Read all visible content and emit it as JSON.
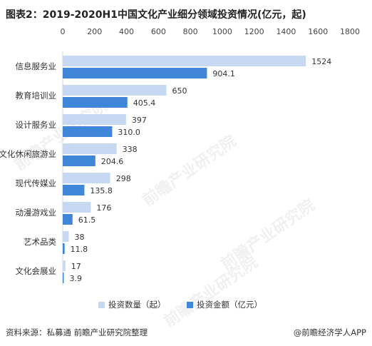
{
  "title": "图表2：2019-2020H1中国文化产业细分领域投资情况(亿元，起)",
  "source": "资料来源：私募通 前瞻产业研究院整理",
  "credit": "@前瞻经济学人APP",
  "watermark": "前瞻产业研究院",
  "colors": {
    "count": "#c6d8f2",
    "amount": "#3f86d8"
  },
  "chart_data": {
    "type": "bar",
    "orientation": "horizontal",
    "categories": [
      "信息服务业",
      "教育培训业",
      "设计服务业",
      "文化休闲旅游业",
      "现代传媒业",
      "动漫游戏业",
      "艺术品类",
      "文化会展业"
    ],
    "series": [
      {
        "name": "投资数量（起）",
        "values": [
          1524,
          650,
          397,
          338,
          298,
          176,
          38,
          17
        ],
        "labels": [
          "1524",
          "650",
          "397",
          "338",
          "298",
          "176",
          "38",
          "17"
        ]
      },
      {
        "name": "投资金额（亿元）",
        "values": [
          904.1,
          405.4,
          310.0,
          204.6,
          135.8,
          61.5,
          11.8,
          3.9
        ],
        "labels": [
          "904.1",
          "405.4",
          "310.0",
          "204.6",
          "135.8",
          "61.5",
          "11.8",
          "3.9"
        ]
      }
    ],
    "xlim": [
      0,
      1800
    ],
    "xticks": [
      "0",
      "200",
      "400",
      "600",
      "800",
      "1000",
      "1200",
      "1400",
      "1600",
      "1800"
    ],
    "grid": false,
    "legend": "bottom"
  }
}
